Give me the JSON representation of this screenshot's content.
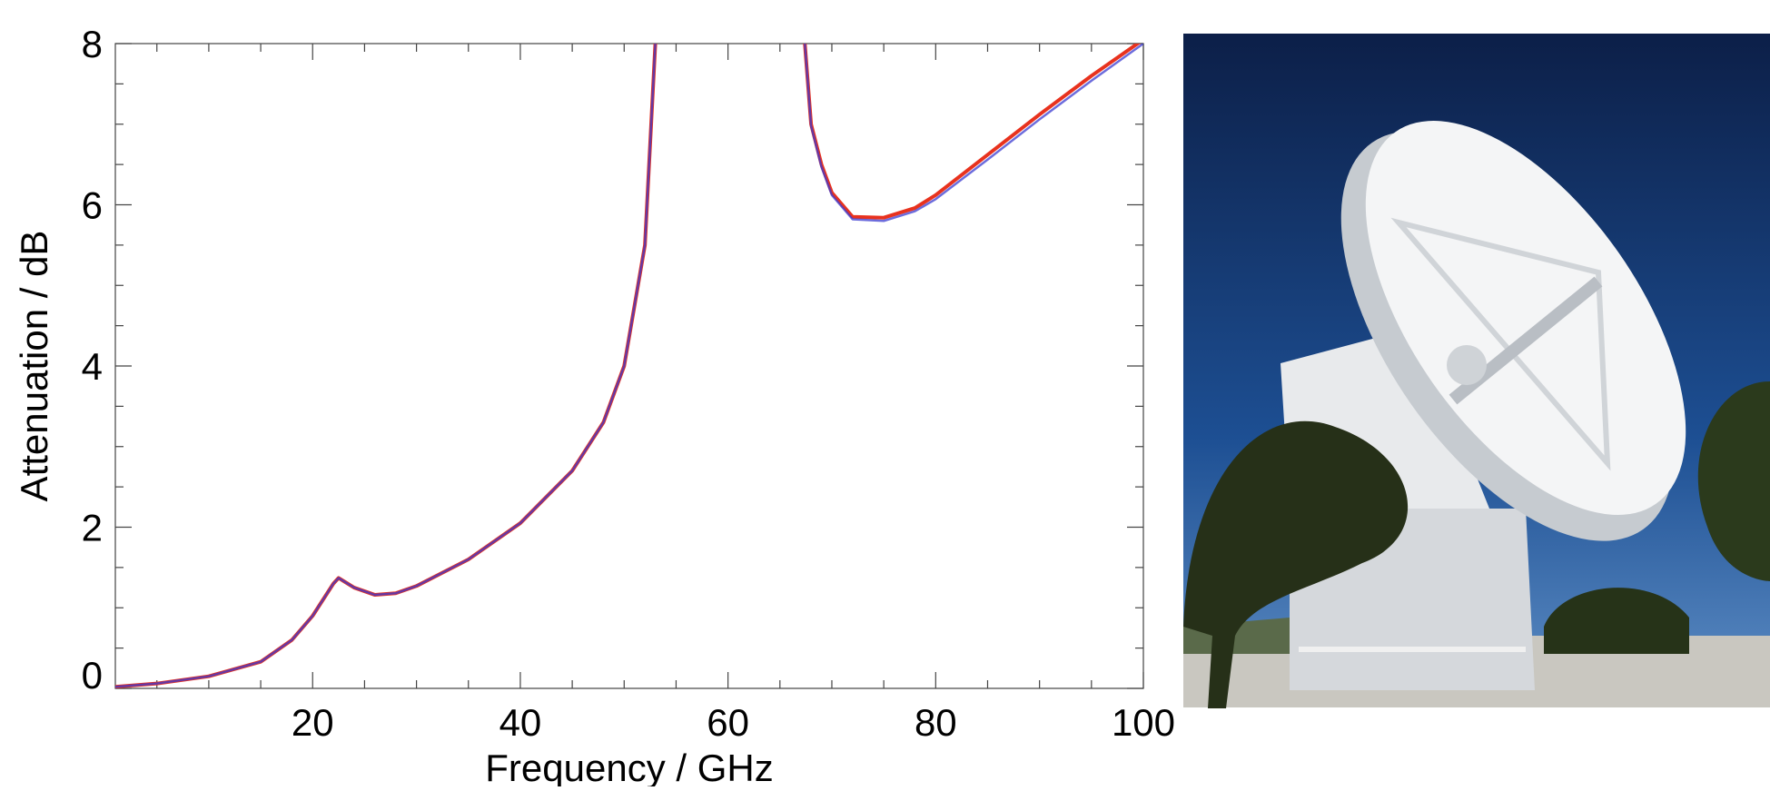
{
  "chart_data": {
    "type": "line",
    "xlabel": "Frequency / GHz",
    "ylabel": "Attenuation / dB",
    "x": [
      1,
      5,
      10,
      15,
      18,
      20,
      22,
      22.5,
      24,
      26,
      28,
      30,
      35,
      40,
      45,
      48,
      50,
      52,
      53,
      60,
      67.4,
      68,
      69,
      70,
      72,
      75,
      78,
      80,
      85,
      90,
      95,
      100
    ],
    "series": [
      {
        "color": "#e8321e",
        "values": [
          0.02,
          0.06,
          0.15,
          0.33,
          0.6,
          0.9,
          1.3,
          1.37,
          1.25,
          1.16,
          1.18,
          1.27,
          1.6,
          2.05,
          2.7,
          3.3,
          4.0,
          5.5,
          8.0,
          null,
          8.0,
          7.0,
          6.5,
          6.15,
          5.85,
          5.84,
          5.96,
          6.12,
          6.62,
          7.12,
          7.6,
          8.05
        ]
      },
      {
        "color": "#3b3bd0",
        "values": [
          0.02,
          0.06,
          0.15,
          0.33,
          0.6,
          0.9,
          1.3,
          1.37,
          1.25,
          1.16,
          1.18,
          1.27,
          1.6,
          2.05,
          2.7,
          3.3,
          4.0,
          5.5,
          8.0,
          null,
          8.0,
          6.98,
          6.47,
          6.12,
          5.82,
          5.8,
          5.92,
          6.07,
          6.56,
          7.06,
          7.54,
          8.0
        ]
      }
    ],
    "xlim": [
      1,
      100
    ],
    "xticks": [
      20,
      40,
      60,
      80,
      100
    ],
    "x_minor_ticks": [
      5,
      10,
      15,
      25,
      30,
      35,
      45,
      50,
      55,
      65,
      70,
      75,
      85,
      90,
      95
    ],
    "ylim": [
      0,
      8
    ],
    "yticks": [
      0,
      2,
      4,
      6,
      8
    ],
    "y_minor_ticks": [
      0.5,
      1,
      1.5,
      2.5,
      3,
      3.5,
      4.5,
      5,
      5.5,
      6.5,
      7,
      7.5
    ],
    "grid": false
  }
}
